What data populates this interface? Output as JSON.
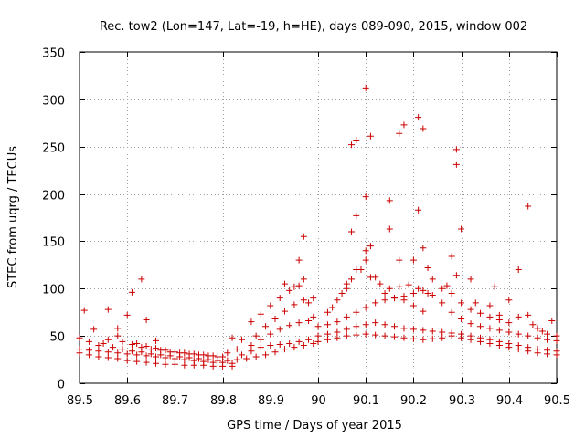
{
  "chart_data": {
    "type": "scatter",
    "title": "Rec. tow2 (Lon=147, Lat=-19, h=HE), days 089-090, 2015, window 002",
    "xlabel": "GPS time / Days of year 2015",
    "ylabel": "STEC from uqrg / TECUs",
    "xlim": [
      89.5,
      90.5
    ],
    "ylim": [
      0,
      350
    ],
    "xticks": [
      89.5,
      89.6,
      89.7,
      89.8,
      89.9,
      90.0,
      90.1,
      90.2,
      90.3,
      90.4,
      90.5
    ],
    "xtick_labels": [
      "89.5",
      "89.6",
      "89.7",
      "89.8",
      "89.9",
      "90",
      "90.1",
      "90.2",
      "90.3",
      "90.4",
      "90.5"
    ],
    "yticks": [
      0,
      50,
      100,
      150,
      200,
      250,
      300,
      350
    ],
    "ytick_labels": [
      "0",
      "50",
      "100",
      "150",
      "200",
      "250",
      "300",
      "350"
    ],
    "grid": true,
    "marker": "+",
    "color": "#cc0000",
    "series": [
      {
        "name": "STEC",
        "points": [
          [
            89.51,
            77
          ],
          [
            89.53,
            57
          ],
          [
            89.56,
            78
          ],
          [
            89.58,
            58
          ],
          [
            89.6,
            72
          ],
          [
            89.61,
            96
          ],
          [
            89.63,
            110
          ],
          [
            89.64,
            67
          ],
          [
            89.66,
            45
          ],
          [
            89.5,
            48
          ],
          [
            89.52,
            44
          ],
          [
            89.54,
            40
          ],
          [
            89.56,
            46
          ],
          [
            89.58,
            50
          ],
          [
            89.59,
            44
          ],
          [
            89.61,
            41
          ],
          [
            89.63,
            38
          ],
          [
            89.65,
            36
          ],
          [
            89.67,
            35
          ],
          [
            89.69,
            33
          ],
          [
            89.71,
            32
          ],
          [
            89.73,
            31
          ],
          [
            89.75,
            30
          ],
          [
            89.77,
            29
          ],
          [
            89.79,
            28
          ],
          [
            89.81,
            32
          ],
          [
            89.83,
            36
          ],
          [
            89.5,
            36
          ],
          [
            89.52,
            35
          ],
          [
            89.54,
            34
          ],
          [
            89.56,
            33
          ],
          [
            89.58,
            32
          ],
          [
            89.6,
            31
          ],
          [
            89.62,
            30
          ],
          [
            89.64,
            29
          ],
          [
            89.66,
            28
          ],
          [
            89.68,
            27
          ],
          [
            89.7,
            26
          ],
          [
            89.72,
            25
          ],
          [
            89.74,
            24
          ],
          [
            89.76,
            23
          ],
          [
            89.78,
            22
          ],
          [
            89.8,
            22
          ],
          [
            89.82,
            21
          ],
          [
            89.5,
            32
          ],
          [
            89.52,
            30
          ],
          [
            89.54,
            28
          ],
          [
            89.56,
            27
          ],
          [
            89.58,
            26
          ],
          [
            89.6,
            24
          ],
          [
            89.62,
            23
          ],
          [
            89.64,
            22
          ],
          [
            89.66,
            21
          ],
          [
            89.68,
            20
          ],
          [
            89.7,
            20
          ],
          [
            89.72,
            19
          ],
          [
            89.74,
            19
          ],
          [
            89.76,
            19
          ],
          [
            89.78,
            18
          ],
          [
            89.8,
            18
          ],
          [
            89.82,
            18
          ],
          [
            89.55,
            42
          ],
          [
            89.57,
            38
          ],
          [
            89.59,
            36
          ],
          [
            89.61,
            34
          ],
          [
            89.63,
            33
          ],
          [
            89.65,
            31
          ],
          [
            89.67,
            30
          ],
          [
            89.69,
            29
          ],
          [
            89.71,
            28
          ],
          [
            89.73,
            27
          ],
          [
            89.75,
            26
          ],
          [
            89.77,
            25
          ],
          [
            89.79,
            24
          ],
          [
            89.81,
            24
          ],
          [
            89.83,
            25
          ],
          [
            89.62,
            42
          ],
          [
            89.64,
            39
          ],
          [
            89.66,
            37
          ],
          [
            89.68,
            35
          ],
          [
            89.7,
            33
          ],
          [
            89.72,
            32
          ],
          [
            89.74,
            31
          ],
          [
            89.76,
            30
          ],
          [
            89.78,
            29
          ],
          [
            89.8,
            28
          ],
          [
            89.82,
            48
          ],
          [
            89.84,
            46
          ],
          [
            89.86,
            65
          ],
          [
            89.88,
            73
          ],
          [
            89.9,
            82
          ],
          [
            89.92,
            90
          ],
          [
            89.94,
            98
          ],
          [
            89.96,
            103
          ],
          [
            89.97,
            110
          ],
          [
            89.84,
            30
          ],
          [
            89.86,
            34
          ],
          [
            89.88,
            38
          ],
          [
            89.9,
            40
          ],
          [
            89.92,
            41
          ],
          [
            89.94,
            42
          ],
          [
            89.96,
            44
          ],
          [
            89.98,
            46
          ],
          [
            89.85,
            26
          ],
          [
            89.87,
            28
          ],
          [
            89.89,
            30
          ],
          [
            89.91,
            33
          ],
          [
            89.93,
            36
          ],
          [
            89.95,
            38
          ],
          [
            89.97,
            40
          ],
          [
            89.99,
            42
          ],
          [
            89.86,
            40
          ],
          [
            89.88,
            46
          ],
          [
            89.9,
            52
          ],
          [
            89.92,
            57
          ],
          [
            89.94,
            61
          ],
          [
            89.96,
            64
          ],
          [
            89.98,
            66
          ],
          [
            89.87,
            50
          ],
          [
            89.89,
            60
          ],
          [
            89.91,
            68
          ],
          [
            89.93,
            76
          ],
          [
            89.95,
            83
          ],
          [
            89.97,
            88
          ],
          [
            89.99,
            90
          ],
          [
            89.93,
            105
          ],
          [
            89.95,
            102
          ],
          [
            89.96,
            130
          ],
          [
            89.97,
            155
          ],
          [
            89.98,
            85
          ],
          [
            89.99,
            70
          ],
          [
            90.0,
            60
          ],
          [
            90.02,
            62
          ],
          [
            90.04,
            65
          ],
          [
            90.06,
            70
          ],
          [
            90.08,
            75
          ],
          [
            90.1,
            80
          ],
          [
            90.12,
            85
          ],
          [
            90.14,
            88
          ],
          [
            90.16,
            90
          ],
          [
            90.18,
            92
          ],
          [
            90.2,
            95
          ],
          [
            90.22,
            98
          ],
          [
            90.24,
            93
          ],
          [
            90.26,
            85
          ],
          [
            90.28,
            75
          ],
          [
            90.3,
            68
          ],
          [
            90.32,
            63
          ],
          [
            90.34,
            60
          ],
          [
            90.36,
            58
          ],
          [
            90.38,
            56
          ],
          [
            90.4,
            54
          ],
          [
            90.42,
            52
          ],
          [
            90.44,
            50
          ],
          [
            90.46,
            48
          ],
          [
            90.48,
            46
          ],
          [
            90.5,
            45
          ],
          [
            90.0,
            50
          ],
          [
            90.02,
            52
          ],
          [
            90.04,
            54
          ],
          [
            90.06,
            57
          ],
          [
            90.08,
            60
          ],
          [
            90.1,
            62
          ],
          [
            90.12,
            64
          ],
          [
            90.14,
            62
          ],
          [
            90.16,
            60
          ],
          [
            90.18,
            58
          ],
          [
            90.2,
            57
          ],
          [
            90.22,
            56
          ],
          [
            90.24,
            55
          ],
          [
            90.26,
            54
          ],
          [
            90.28,
            53
          ],
          [
            90.3,
            52
          ],
          [
            90.32,
            50
          ],
          [
            90.34,
            48
          ],
          [
            90.36,
            46
          ],
          [
            90.38,
            44
          ],
          [
            90.4,
            42
          ],
          [
            90.42,
            40
          ],
          [
            90.44,
            38
          ],
          [
            90.46,
            36
          ],
          [
            90.48,
            35
          ],
          [
            90.5,
            34
          ],
          [
            90.0,
            44
          ],
          [
            90.02,
            46
          ],
          [
            90.04,
            48
          ],
          [
            90.06,
            50
          ],
          [
            90.08,
            51
          ],
          [
            90.1,
            52
          ],
          [
            90.12,
            51
          ],
          [
            90.14,
            50
          ],
          [
            90.16,
            49
          ],
          [
            90.18,
            48
          ],
          [
            90.2,
            47
          ],
          [
            90.22,
            46
          ],
          [
            90.24,
            47
          ],
          [
            90.26,
            48
          ],
          [
            90.28,
            50
          ],
          [
            90.3,
            48
          ],
          [
            90.32,
            46
          ],
          [
            90.34,
            44
          ],
          [
            90.36,
            42
          ],
          [
            90.38,
            40
          ],
          [
            90.4,
            38
          ],
          [
            90.42,
            36
          ],
          [
            90.44,
            34
          ],
          [
            90.46,
            32
          ],
          [
            90.48,
            31
          ],
          [
            90.5,
            30
          ],
          [
            90.03,
            80
          ],
          [
            90.05,
            95
          ],
          [
            90.07,
            110
          ],
          [
            90.09,
            120
          ],
          [
            90.1,
            130
          ],
          [
            90.11,
            112
          ],
          [
            90.13,
            105
          ],
          [
            90.15,
            100
          ],
          [
            90.17,
            102
          ],
          [
            90.19,
            104
          ],
          [
            90.21,
            100
          ],
          [
            90.23,
            95
          ],
          [
            90.06,
            105
          ],
          [
            90.08,
            120
          ],
          [
            90.1,
            140
          ],
          [
            90.11,
            145
          ],
          [
            90.12,
            112
          ],
          [
            90.14,
            95
          ],
          [
            90.16,
            90
          ],
          [
            90.18,
            88
          ],
          [
            90.2,
            82
          ],
          [
            90.22,
            76
          ],
          [
            90.07,
            160
          ],
          [
            90.08,
            177
          ],
          [
            90.1,
            197
          ],
          [
            90.15,
            193
          ],
          [
            90.15,
            163
          ],
          [
            90.21,
            183
          ],
          [
            90.07,
            252
          ],
          [
            90.08,
            257
          ],
          [
            90.1,
            312
          ],
          [
            90.11,
            261
          ],
          [
            90.17,
            264
          ],
          [
            90.18,
            273
          ],
          [
            90.21,
            281
          ],
          [
            90.22,
            269
          ],
          [
            90.22,
            143
          ],
          [
            90.2,
            130
          ],
          [
            90.17,
            130
          ],
          [
            90.23,
            122
          ],
          [
            90.28,
            134
          ],
          [
            90.29,
            247
          ],
          [
            90.29,
            231
          ],
          [
            90.3,
            163
          ],
          [
            90.32,
            110
          ],
          [
            90.29,
            114
          ],
          [
            90.27,
            103
          ],
          [
            90.33,
            85
          ],
          [
            90.36,
            82
          ],
          [
            90.37,
            102
          ],
          [
            90.38,
            72
          ],
          [
            90.4,
            88
          ],
          [
            90.42,
            120
          ],
          [
            90.44,
            187
          ],
          [
            90.45,
            62
          ],
          [
            90.47,
            55
          ],
          [
            90.49,
            66
          ],
          [
            90.02,
            75
          ],
          [
            90.04,
            88
          ],
          [
            90.06,
            100
          ],
          [
            90.24,
            110
          ],
          [
            90.26,
            100
          ],
          [
            90.28,
            95
          ],
          [
            90.3,
            85
          ],
          [
            90.32,
            78
          ],
          [
            90.34,
            74
          ],
          [
            90.36,
            70
          ],
          [
            90.38,
            67
          ],
          [
            90.4,
            64
          ],
          [
            90.42,
            70
          ],
          [
            90.44,
            72
          ],
          [
            90.46,
            58
          ],
          [
            90.48,
            52
          ],
          [
            90.5,
            50
          ]
        ]
      }
    ]
  }
}
